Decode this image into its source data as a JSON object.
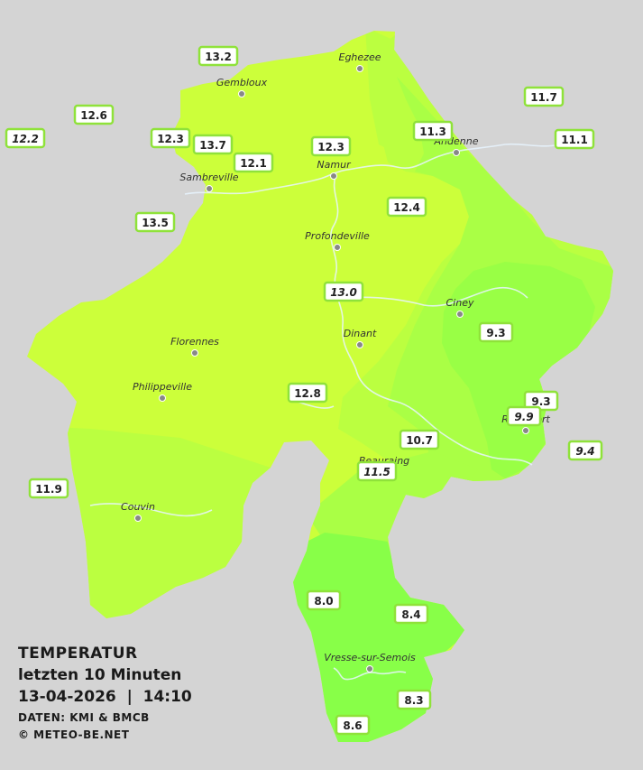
{
  "colors": {
    "background": "#d4d4d4",
    "zone_12_13": "#ccff3a",
    "zone_11_12": "#bbff40",
    "zone_10_11": "#aaff45",
    "zone_9_10": "#99ff45",
    "zone_8_9": "#88ff48",
    "badge_border": "#8fe23a"
  },
  "legend": {
    "title": "TEMPERATUR",
    "period": "letzten 10 Minuten",
    "datetime": "13-04-2026  |  14:10",
    "source": "DATEN: KMI & BMCB",
    "copyright": "© METEO-BE.NET"
  },
  "towns": [
    {
      "name": "Eghezee"
    },
    {
      "name": "Gembloux"
    },
    {
      "name": "Andenne"
    },
    {
      "name": "Namur"
    },
    {
      "name": "Sambreville"
    },
    {
      "name": "Profondeville"
    },
    {
      "name": "Ciney"
    },
    {
      "name": "Dinant"
    },
    {
      "name": "Florennes"
    },
    {
      "name": "Philippeville"
    },
    {
      "name": "Rochefort"
    },
    {
      "name": "Beauraing"
    },
    {
      "name": "Couvin"
    },
    {
      "name": "Vresse-sur-Semois"
    }
  ],
  "stations": [
    {
      "value": "13.2",
      "italic": false
    },
    {
      "value": "12.6",
      "italic": false
    },
    {
      "value": "12.2",
      "italic": true
    },
    {
      "value": "12.3",
      "italic": false
    },
    {
      "value": "13.7",
      "italic": false
    },
    {
      "value": "12.1",
      "italic": false
    },
    {
      "value": "12.3",
      "italic": false
    },
    {
      "value": "11.3",
      "italic": false
    },
    {
      "value": "11.7",
      "italic": false
    },
    {
      "value": "11.1",
      "italic": false
    },
    {
      "value": "13.5",
      "italic": false
    },
    {
      "value": "12.4",
      "italic": false
    },
    {
      "value": "13.0",
      "italic": true
    },
    {
      "value": "9.3",
      "italic": false
    },
    {
      "value": "12.8",
      "italic": false
    },
    {
      "value": "9.3",
      "italic": false
    },
    {
      "value": "9.9",
      "italic": true
    },
    {
      "value": "9.4",
      "italic": true
    },
    {
      "value": "10.7",
      "italic": false
    },
    {
      "value": "11.5",
      "italic": true
    },
    {
      "value": "11.9",
      "italic": false
    },
    {
      "value": "8.0",
      "italic": false
    },
    {
      "value": "8.4",
      "italic": false
    },
    {
      "value": "8.3",
      "italic": false
    },
    {
      "value": "8.6",
      "italic": false
    }
  ]
}
